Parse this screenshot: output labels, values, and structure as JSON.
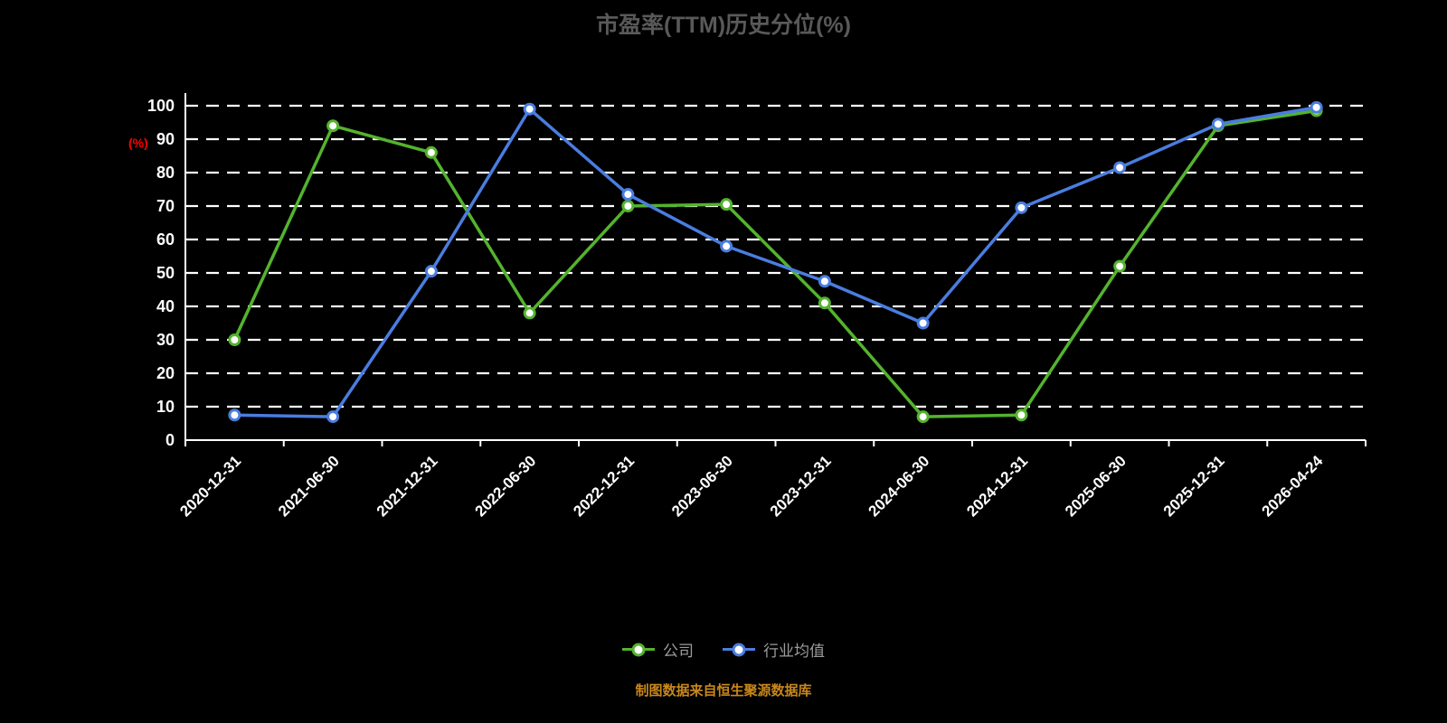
{
  "chart_data": {
    "type": "line",
    "title": "市盈率(TTM)历史分位(%)",
    "xlabel": "",
    "ylabel": "(%)",
    "ylim": [
      0,
      100
    ],
    "y_ticks": [
      0,
      10,
      20,
      30,
      40,
      50,
      60,
      70,
      80,
      90,
      100
    ],
    "grid": "horizontal-dashed",
    "legend_position": "bottom",
    "categories": [
      "2020-12-31",
      "2021-06-30",
      "2021-12-31",
      "2022-06-30",
      "2022-12-31",
      "2023-06-30",
      "2023-12-31",
      "2024-06-30",
      "2024-12-31",
      "2025-06-30",
      "2025-12-31",
      "2026-04-24"
    ],
    "series": [
      {
        "name": "公司",
        "color": "#54b32e",
        "values": [
          30,
          94,
          86,
          38,
          70,
          70.5,
          41,
          7,
          7.5,
          52,
          94,
          98.5
        ]
      },
      {
        "name": "行业均值",
        "color": "#4a7de0",
        "values": [
          7.5,
          7,
          50.5,
          99,
          73.5,
          58,
          47.5,
          35,
          69.5,
          81.5,
          94.5,
          99.5
        ]
      }
    ]
  },
  "footer": {
    "source_note": "制图数据来自恒生聚源数据库"
  },
  "colors": {
    "background": "#000000",
    "axis": "#ffffff",
    "tick_label": "#ffffff",
    "title": "#595959",
    "ylabel": "#ff0000",
    "legend_text": "#9c9c9c",
    "footer_text": "#c8871c",
    "grid": "#ffffff",
    "marker_fill": "#ffffff"
  }
}
